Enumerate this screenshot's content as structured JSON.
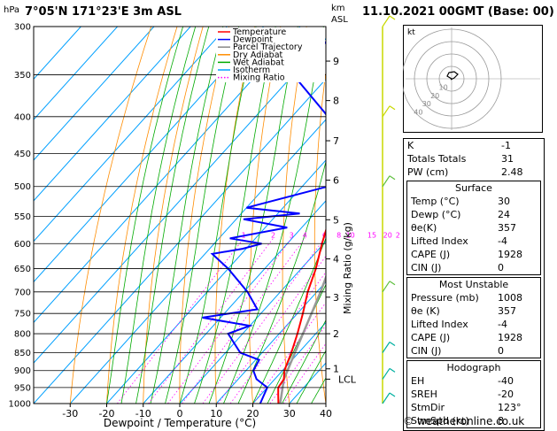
{
  "header": {
    "location": "7°05'N 171°23'E 3m ASL",
    "datetime": "11.10.2021 00GMT (Base: 00)"
  },
  "chart_data": {
    "type": "skew-t",
    "ylabel_left": "hPa",
    "pressure_ticks": [
      300,
      350,
      400,
      450,
      500,
      550,
      600,
      650,
      700,
      750,
      800,
      850,
      900,
      950,
      1000
    ],
    "temp_ticks": [
      -30,
      -20,
      -10,
      0,
      10,
      20,
      30,
      40
    ],
    "xlabel": "Dewpoint / Temperature (°C)",
    "xlim": [
      -40,
      40
    ],
    "km_label": "km\nASL",
    "km_ticks": [
      {
        "label": "9",
        "p": 335
      },
      {
        "label": "8",
        "p": 380
      },
      {
        "label": "7",
        "p": 432
      },
      {
        "label": "6",
        "p": 490
      },
      {
        "label": "5",
        "p": 556
      },
      {
        "label": "4",
        "p": 630
      },
      {
        "label": "3",
        "p": 712
      },
      {
        "label": "2",
        "p": 800
      },
      {
        "label": "1",
        "p": 895
      }
    ],
    "lcl_label": "LCL",
    "lcl_p": 925,
    "mixing_ratio_label": "Mixing Ratio (g/kg)",
    "mixing_ratio_values": [
      "1",
      "2",
      "3",
      "4",
      "6",
      "8",
      "10",
      "15",
      "20",
      "25"
    ],
    "mixing_ratio_label_p": 590,
    "legend": [
      {
        "label": "Temperature",
        "color": "#ff0000",
        "style": "solid"
      },
      {
        "label": "Dewpoint",
        "color": "#0000ff",
        "style": "solid"
      },
      {
        "label": "Parcel Trajectory",
        "color": "#888888",
        "style": "solid"
      },
      {
        "label": "Dry Adiabat",
        "color": "#ff8c00",
        "style": "solid"
      },
      {
        "label": "Wet Adiabat",
        "color": "#00aa00",
        "style": "solid"
      },
      {
        "label": "Isotherm",
        "color": "#00a0ff",
        "style": "solid"
      },
      {
        "label": "Mixing Ratio",
        "color": "#ff00ff",
        "style": "dotted"
      }
    ],
    "temperature": [
      {
        "p": 1000,
        "t": 27
      },
      {
        "p": 975,
        "t": 25
      },
      {
        "p": 950,
        "t": 23
      },
      {
        "p": 925,
        "t": 22.5
      },
      {
        "p": 900,
        "t": 20.5
      },
      {
        "p": 850,
        "t": 18
      },
      {
        "p": 800,
        "t": 15
      },
      {
        "p": 750,
        "t": 11.5
      },
      {
        "p": 700,
        "t": 7.5
      },
      {
        "p": 650,
        "t": 4
      },
      {
        "p": 600,
        "t": -0.5
      },
      {
        "p": 550,
        "t": -5
      },
      {
        "p": 500,
        "t": -9
      },
      {
        "p": 480,
        "t": -11
      },
      {
        "p": 450,
        "t": -14
      },
      {
        "p": 400,
        "t": -20
      },
      {
        "p": 350,
        "t": -27
      },
      {
        "p": 300,
        "t": -36
      }
    ],
    "dewpoint": [
      {
        "p": 1000,
        "t": 22
      },
      {
        "p": 950,
        "t": 20
      },
      {
        "p": 925,
        "t": 15
      },
      {
        "p": 900,
        "t": 12
      },
      {
        "p": 870,
        "t": 11
      },
      {
        "p": 850,
        "t": 4
      },
      {
        "p": 800,
        "t": -4
      },
      {
        "p": 780,
        "t": 0
      },
      {
        "p": 760,
        "t": -15
      },
      {
        "p": 740,
        "t": -2
      },
      {
        "p": 700,
        "t": -9
      },
      {
        "p": 650,
        "t": -20
      },
      {
        "p": 620,
        "t": -28
      },
      {
        "p": 610,
        "t": -21
      },
      {
        "p": 600,
        "t": -17
      },
      {
        "p": 590,
        "t": -27
      },
      {
        "p": 570,
        "t": -14
      },
      {
        "p": 555,
        "t": -28
      },
      {
        "p": 545,
        "t": -14
      },
      {
        "p": 535,
        "t": -30
      },
      {
        "p": 500,
        "t": -13
      },
      {
        "p": 480,
        "t": -13
      },
      {
        "p": 450,
        "t": -20
      },
      {
        "p": 440,
        "t": -18
      },
      {
        "p": 410,
        "t": -27
      },
      {
        "p": 395,
        "t": -32
      },
      {
        "p": 350,
        "t": -50
      },
      {
        "p": 310,
        "t": -49
      },
      {
        "p": 300,
        "t": -50
      }
    ],
    "parcel": [
      {
        "p": 1000,
        "t": 27.5
      },
      {
        "p": 925,
        "t": 22.5
      },
      {
        "p": 850,
        "t": 19
      },
      {
        "p": 700,
        "t": 11
      },
      {
        "p": 600,
        "t": 4
      },
      {
        "p": 500,
        "t": -4
      },
      {
        "p": 400,
        "t": -15
      },
      {
        "p": 350,
        "t": -22
      },
      {
        "p": 300,
        "t": -31
      }
    ],
    "wind_barbs_p": [
      300,
      400,
      500,
      700,
      850,
      925,
      1000
    ]
  },
  "hodograph": {
    "unit_label": "kt",
    "ring_labels": [
      "10",
      "20",
      "30",
      "40"
    ]
  },
  "indices": {
    "top": [
      {
        "k": "K",
        "v": "-1"
      },
      {
        "k": "Totals Totals",
        "v": "31"
      },
      {
        "k": "PW (cm)",
        "v": "2.48"
      }
    ],
    "surface": {
      "title": "Surface",
      "rows": [
        {
          "k": "Temp (°C)",
          "v": "30"
        },
        {
          "k": "Dewp (°C)",
          "v": "24"
        },
        {
          "k": "θe(K)",
          "v": "357"
        },
        {
          "k": "Lifted Index",
          "v": "-4"
        },
        {
          "k": "CAPE (J)",
          "v": "1928"
        },
        {
          "k": "CIN (J)",
          "v": "0"
        }
      ]
    },
    "most_unstable": {
      "title": "Most Unstable",
      "rows": [
        {
          "k": "Pressure (mb)",
          "v": "1008"
        },
        {
          "k": "θe (K)",
          "v": "357"
        },
        {
          "k": "Lifted Index",
          "v": "-4"
        },
        {
          "k": "CAPE (J)",
          "v": "1928"
        },
        {
          "k": "CIN (J)",
          "v": "0"
        }
      ]
    },
    "hodograph": {
      "title": "Hodograph",
      "rows": [
        {
          "k": "EH",
          "v": "-40"
        },
        {
          "k": "SREH",
          "v": "-20"
        },
        {
          "k": "StmDir",
          "v": "123°"
        },
        {
          "k": "StmSpd (kt)",
          "v": "8"
        }
      ]
    }
  },
  "footer": {
    "text": "© weatheronline.co.uk"
  }
}
